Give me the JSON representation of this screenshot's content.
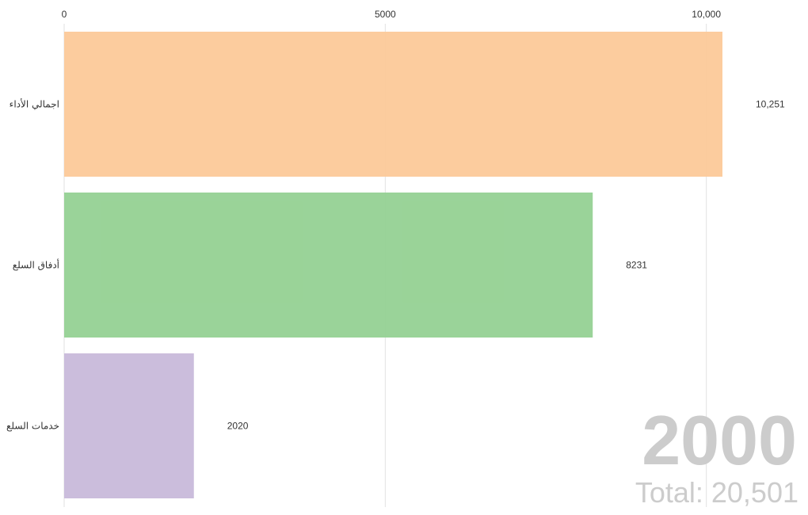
{
  "chart_data": {
    "type": "bar",
    "orientation": "horizontal",
    "categories": [
      "اجمالي الأداء",
      "أدفاق السلع",
      "خدمات السلع"
    ],
    "values": [
      10251,
      8231,
      2020
    ],
    "value_labels": [
      "10,251",
      "8231",
      "2020"
    ],
    "colors": [
      "#fcc999",
      "#95d193",
      "#c8b9da"
    ],
    "xlim": [
      0,
      10251
    ],
    "x_ticks": [
      0,
      5000,
      10000
    ],
    "x_tick_labels": [
      "0",
      "5000",
      "10,000"
    ],
    "axis_position": "top",
    "grid": true,
    "year": "2000",
    "total_text": "Total: 20,501"
  }
}
